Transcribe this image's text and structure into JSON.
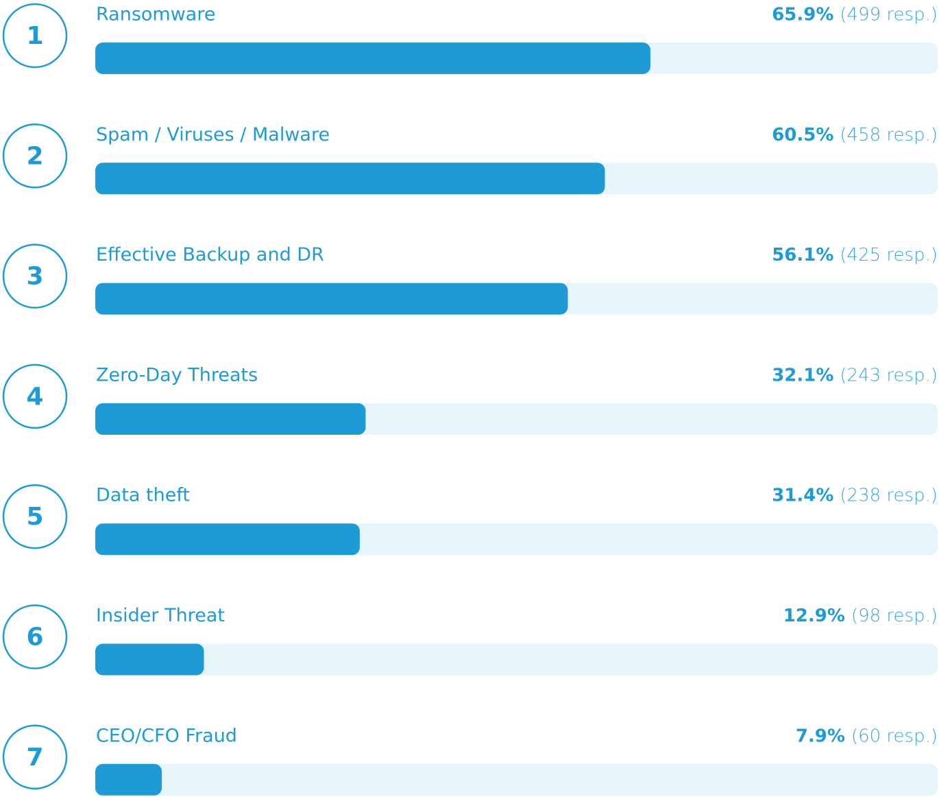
{
  "chart_data": {
    "type": "bar",
    "orientation": "horizontal",
    "ranks": [
      1,
      2,
      3,
      4,
      5,
      6,
      7
    ],
    "categories": [
      "Ransomware",
      "Spam / Viruses / Malware",
      "Effective Backup and DR",
      "Zero-Day Threats",
      "Data theft",
      "Insider Threat",
      "CEO/CFO Fraud"
    ],
    "values": [
      65.9,
      60.5,
      56.1,
      32.1,
      31.4,
      12.9,
      7.9
    ],
    "value_labels": [
      "65.9%",
      "60.5%",
      "56.1%",
      "32.1%",
      "31.4%",
      "12.9%",
      "7.9%"
    ],
    "response_labels": [
      "(499 resp.)",
      "(458 resp.)",
      "(425 resp.)",
      "(243 resp.)",
      "(238 resp.)",
      "(98 resp.)",
      "(60 resp.)"
    ],
    "color": "#1e9bd7",
    "track_color": "#e6f4fb",
    "xlim": [
      0,
      100
    ]
  }
}
